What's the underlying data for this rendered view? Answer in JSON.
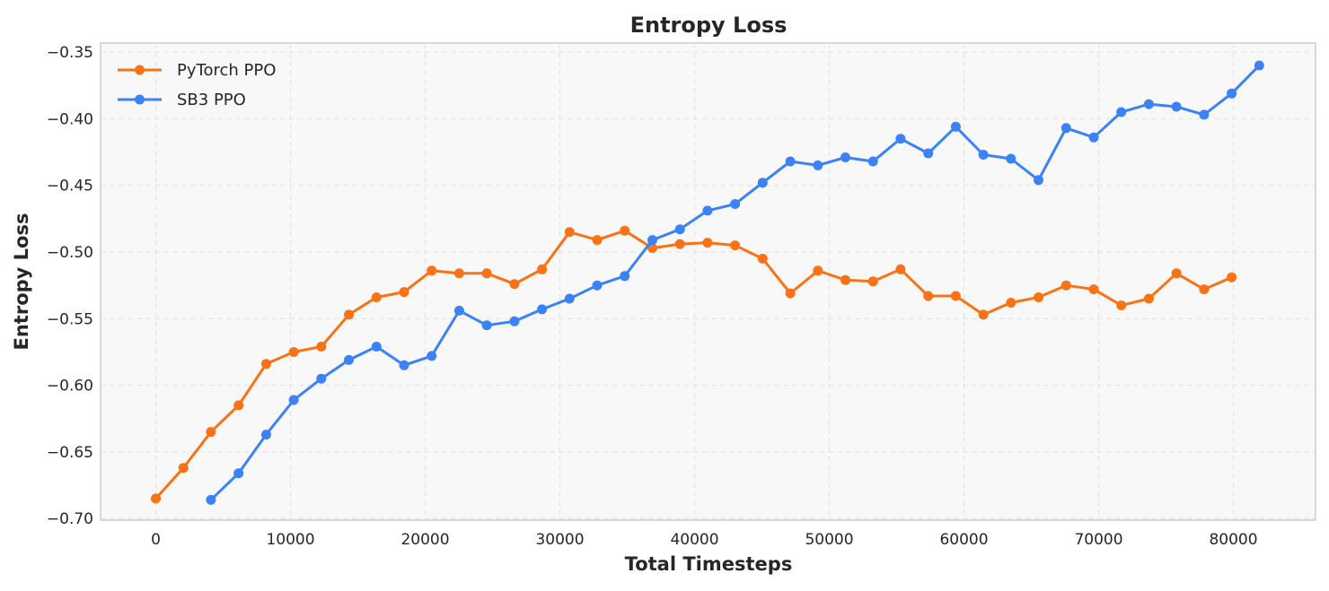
{
  "chart_data": {
    "type": "line",
    "title": "Entropy Loss",
    "xlabel": "Total Timesteps",
    "ylabel": "Entropy Loss",
    "xlim": [
      -4100,
      86100
    ],
    "ylim": [
      -0.7012,
      -0.3432
    ],
    "xticks": [
      0,
      10000,
      20000,
      30000,
      40000,
      50000,
      60000,
      70000,
      80000
    ],
    "xtick_labels": [
      "0",
      "10000",
      "20000",
      "30000",
      "40000",
      "50000",
      "60000",
      "70000",
      "80000"
    ],
    "yticks": [
      -0.35,
      -0.4,
      -0.45,
      -0.5,
      -0.55,
      -0.6,
      -0.65,
      -0.7
    ],
    "ytick_labels": [
      "−0.35",
      "−0.40",
      "−0.45",
      "−0.50",
      "−0.55",
      "−0.60",
      "−0.65",
      "−0.70"
    ],
    "grid": true,
    "legend_position": "top-left",
    "series": [
      {
        "name": "PyTorch PPO",
        "color": "#f97316",
        "x": [
          0,
          2048,
          4096,
          6144,
          8192,
          10240,
          12288,
          14336,
          16384,
          18432,
          20480,
          22528,
          24576,
          26624,
          28672,
          30720,
          32768,
          34816,
          36864,
          38912,
          40960,
          43008,
          45056,
          47104,
          49152,
          51200,
          53248,
          55296,
          57344,
          59392,
          61440,
          63488,
          65536,
          67584,
          69632,
          71680,
          73728,
          75776,
          77824,
          79872
        ],
        "y": [
          -0.685,
          -0.662,
          -0.635,
          -0.615,
          -0.584,
          -0.575,
          -0.571,
          -0.547,
          -0.534,
          -0.53,
          -0.514,
          -0.516,
          -0.516,
          -0.524,
          -0.513,
          -0.485,
          -0.491,
          -0.484,
          -0.497,
          -0.494,
          -0.493,
          -0.495,
          -0.505,
          -0.531,
          -0.514,
          -0.521,
          -0.522,
          -0.513,
          -0.533,
          -0.533,
          -0.547,
          -0.538,
          -0.534,
          -0.525,
          -0.528,
          -0.54,
          -0.535,
          -0.516,
          -0.528,
          -0.519
        ]
      },
      {
        "name": "SB3 PPO",
        "color": "#3b82f6",
        "x": [
          4096,
          6144,
          8192,
          10240,
          12288,
          14336,
          16384,
          18432,
          20480,
          22528,
          24576,
          26624,
          28672,
          30720,
          32768,
          34816,
          36864,
          38912,
          40960,
          43008,
          45056,
          47104,
          49152,
          51200,
          53248,
          55296,
          57344,
          59392,
          61440,
          63488,
          65536,
          67584,
          69632,
          71680,
          73728,
          75776,
          77824,
          79872,
          81920
        ],
        "y": [
          -0.686,
          -0.666,
          -0.637,
          -0.611,
          -0.595,
          -0.581,
          -0.571,
          -0.585,
          -0.578,
          -0.544,
          -0.555,
          -0.552,
          -0.543,
          -0.535,
          -0.525,
          -0.518,
          -0.491,
          -0.483,
          -0.469,
          -0.464,
          -0.448,
          -0.432,
          -0.435,
          -0.429,
          -0.432,
          -0.415,
          -0.426,
          -0.406,
          -0.427,
          -0.43,
          -0.446,
          -0.407,
          -0.414,
          -0.395,
          -0.389,
          -0.391,
          -0.397,
          -0.381,
          -0.36
        ]
      }
    ]
  }
}
